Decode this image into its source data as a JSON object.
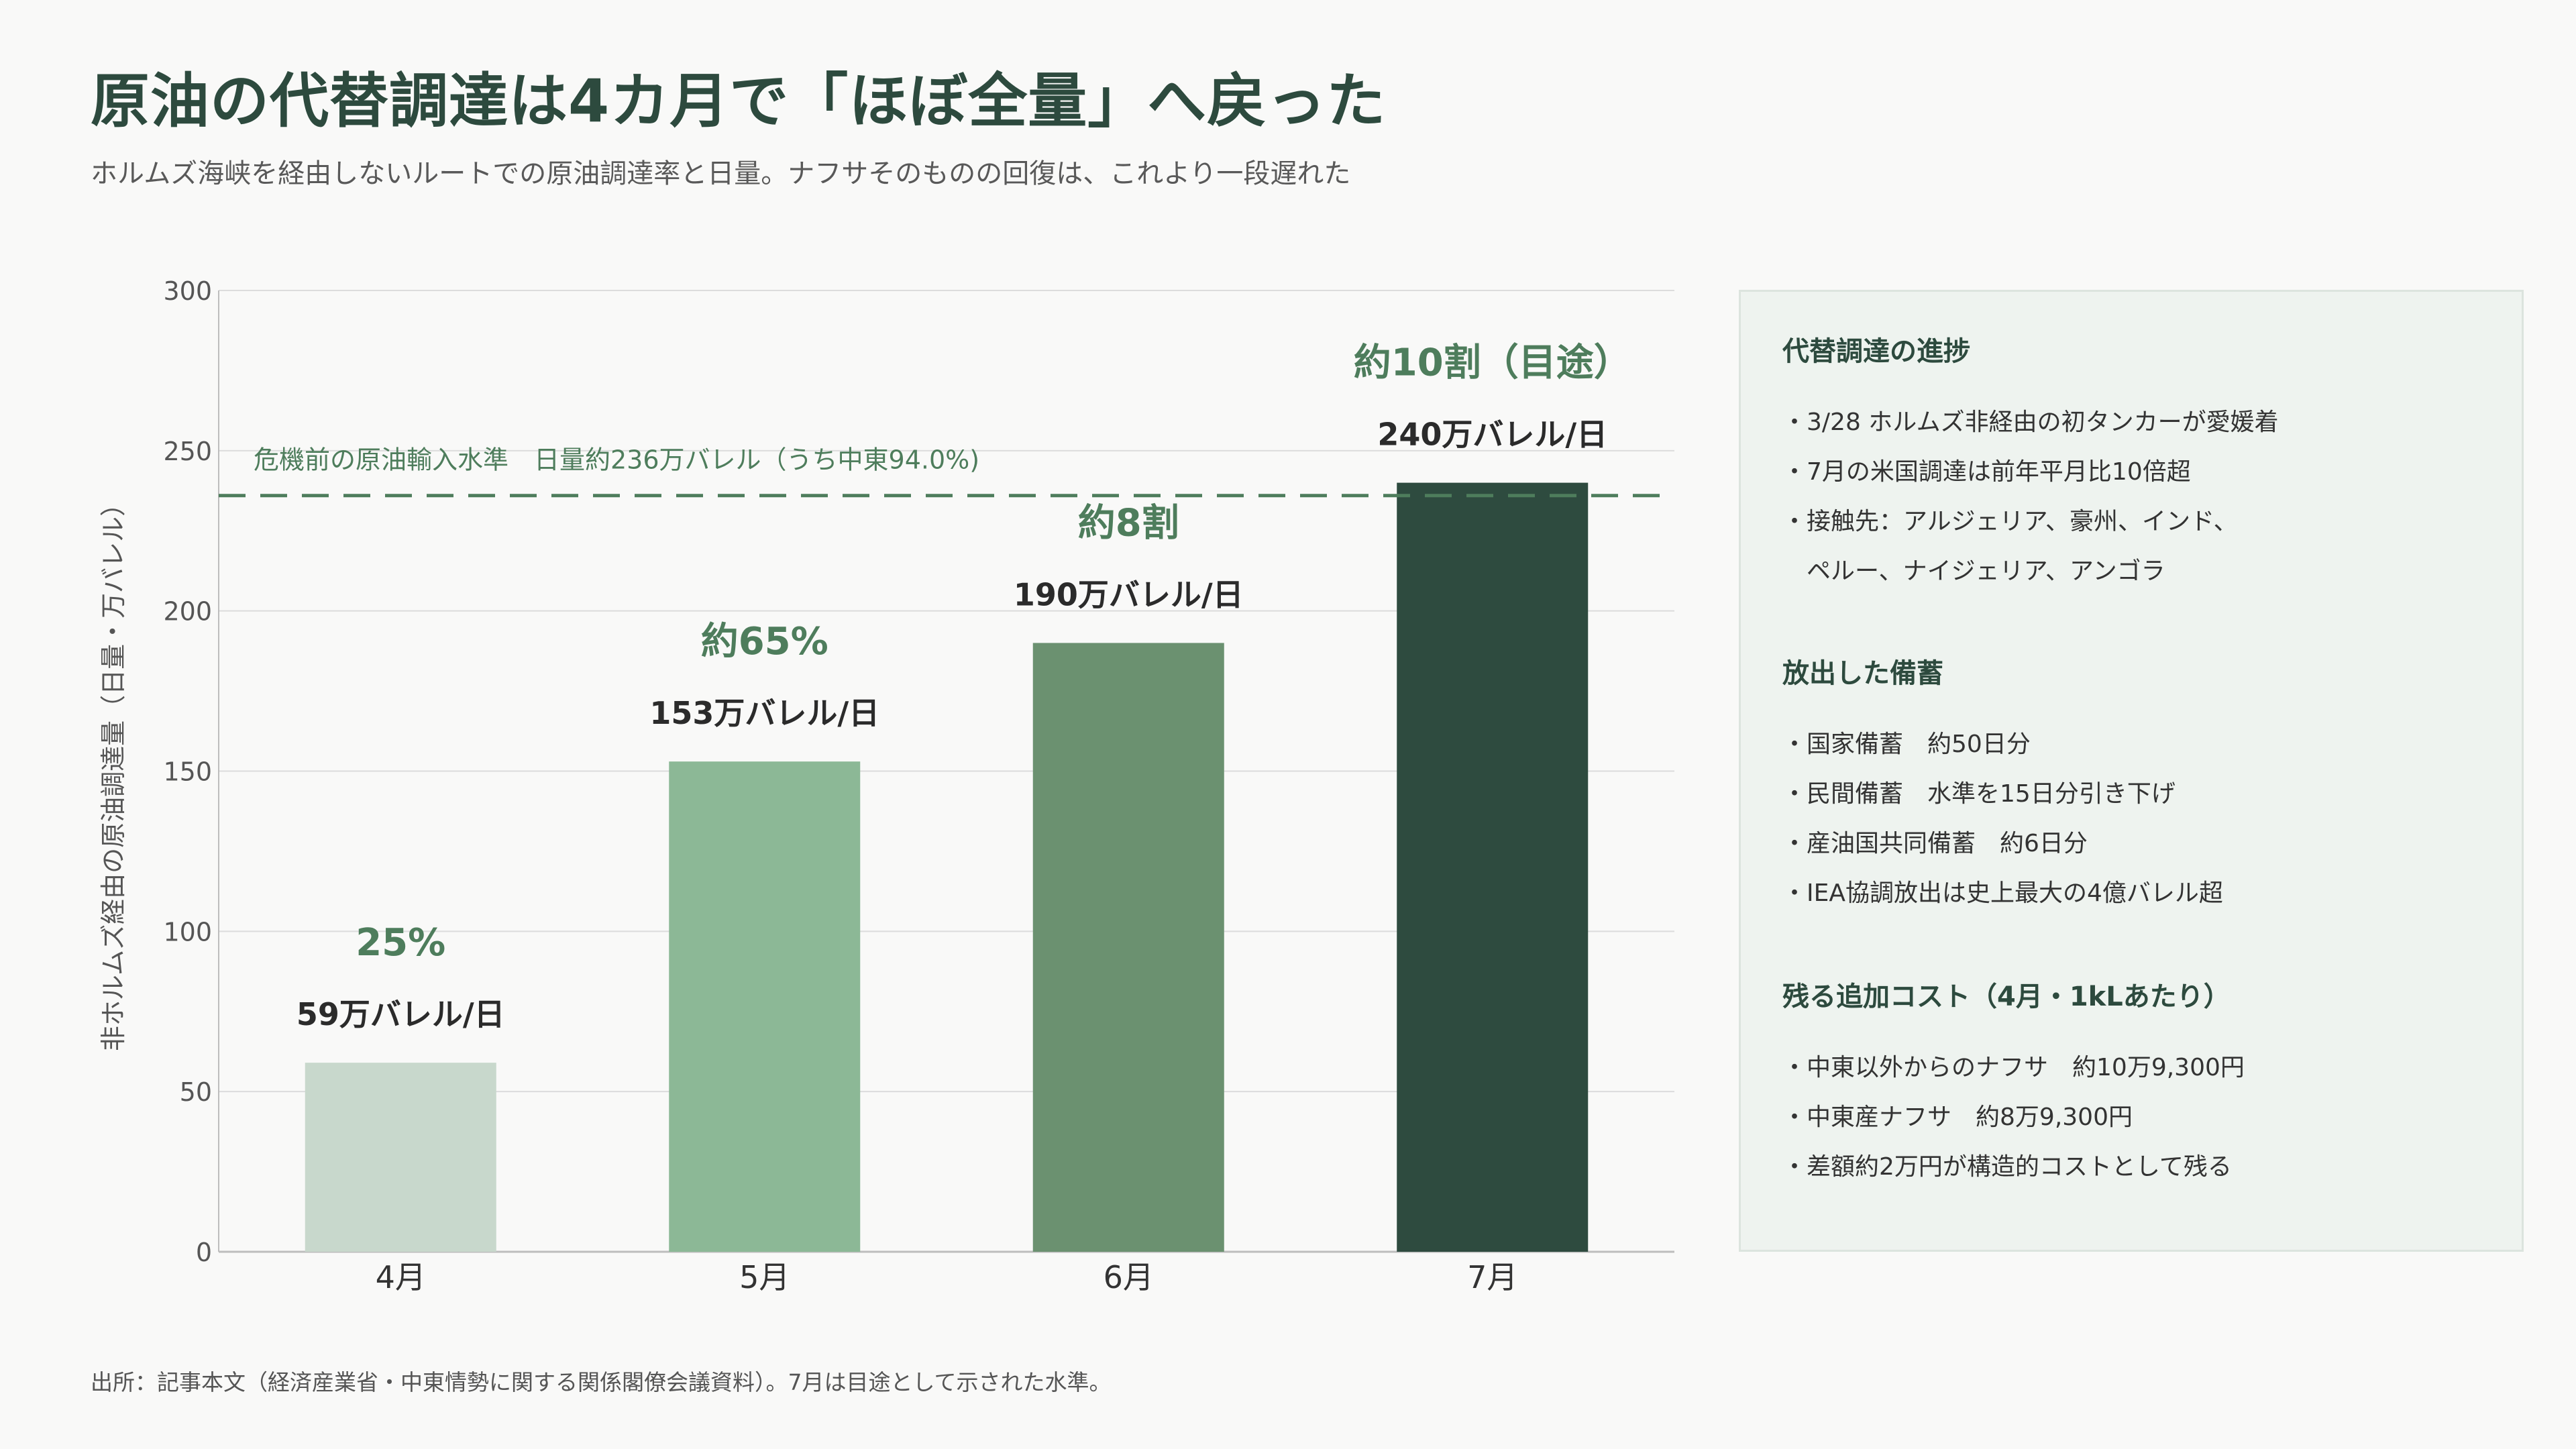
{
  "header": {
    "title": "原油の代替調達は4カ月で「ほぼ全量」へ戻った",
    "subtitle": "ホルムズ海峡を経由しないルートでの原油調達率と日量。ナフサそのものの回復は、これより一段遅れた"
  },
  "chart_data": {
    "type": "bar",
    "categories": [
      "4月",
      "5月",
      "6月",
      "7月"
    ],
    "values": [
      59,
      153,
      190,
      240
    ],
    "value_labels": [
      "59万バレル/日",
      "153万バレル/日",
      "190万バレル/日",
      "240万バレル/日"
    ],
    "ratio_labels": [
      "25%",
      "約65%",
      "約8割",
      "約10割（目途）"
    ],
    "bar_colors": [
      "#c8d8cc",
      "#8cb896",
      "#6b9170",
      "#2e4b3f"
    ],
    "ratio_color": "#4e7d5c",
    "value_label_color": "#2b2b2b",
    "ylabel": "非ホルムズ経由の原油調達量（日量・万バレル）",
    "ylim": [
      0,
      300
    ],
    "yticks": [
      0,
      50,
      100,
      150,
      200,
      250,
      300
    ],
    "grid": true,
    "reference_line": {
      "value": 236,
      "label": "危機前の原油輸入水準　日量約236万バレル（うち中東94.0%)",
      "color": "#4e7d5c",
      "style": "dashed"
    }
  },
  "panel": {
    "sections": [
      {
        "heading": "代替調達の進捗",
        "items": [
          {
            "text": "3/28 ホルムズ非経由の初タンカーが愛媛着",
            "cont": false
          },
          {
            "text": "7月の米国調達は前年平月比10倍超",
            "cont": false
          },
          {
            "text": "接触先：アルジェリア、豪州、インド、",
            "cont": false
          },
          {
            "text": "ペルー、ナイジェリア、アンゴラ",
            "cont": true
          }
        ]
      },
      {
        "heading": "放出した備蓄",
        "items": [
          {
            "text": "国家備蓄　約50日分",
            "cont": false
          },
          {
            "text": "民間備蓄　水準を15日分引き下げ",
            "cont": false
          },
          {
            "text": "産油国共同備蓄　約6日分",
            "cont": false
          },
          {
            "text": "IEA協調放出は史上最大の4億バレル超",
            "cont": false
          }
        ]
      },
      {
        "heading": "残る追加コスト（4月・1kLあたり）",
        "items": [
          {
            "text": "中東以外からのナフサ　約10万9,300円",
            "cont": false
          },
          {
            "text": "中東産ナフサ　約8万9,300円",
            "cont": false
          },
          {
            "text": "差額約2万円が構造的コストとして残る",
            "cont": false
          }
        ]
      }
    ]
  },
  "footnote": "出所：記事本文（経済産業省・中東情勢に関する関係閣僚会議資料）。7月は目途として示された水準。"
}
